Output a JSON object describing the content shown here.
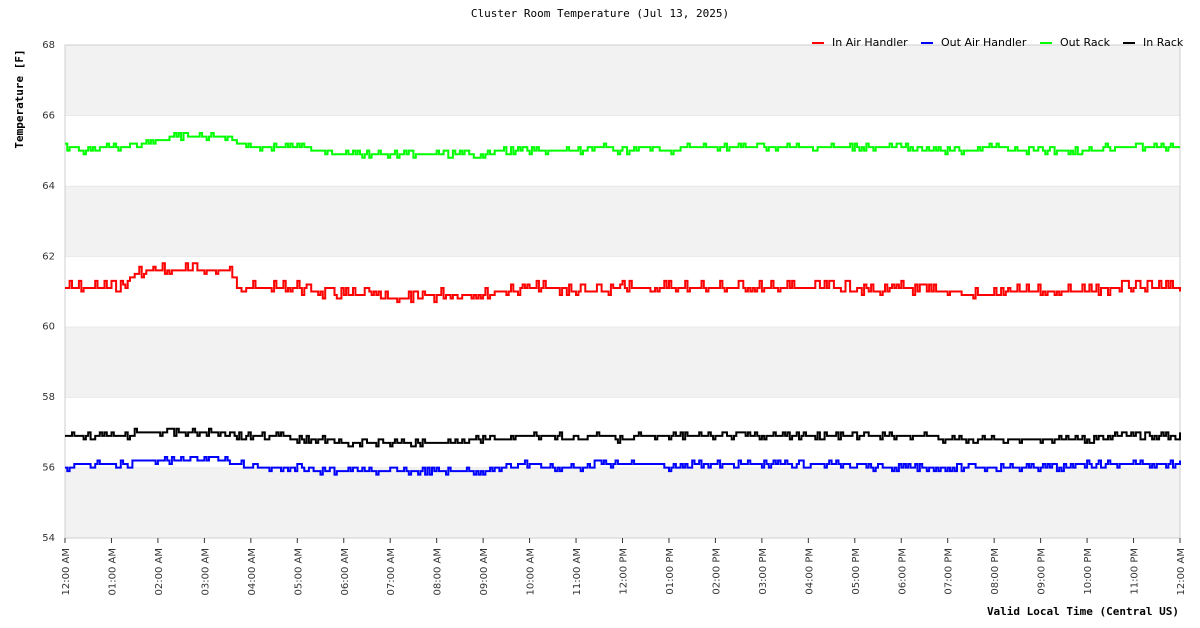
{
  "chart_data": {
    "type": "line",
    "title": "Cluster Room Temperature (Jul 13, 2025)",
    "xlabel": "Valid Local Time (Central US)",
    "ylabel": "Temperature [F]",
    "ylim": [
      54,
      68
    ],
    "yticks": [
      54,
      56,
      58,
      60,
      62,
      64,
      66,
      68
    ],
    "xlim": [
      0,
      24
    ],
    "x_ticks": [
      0,
      1,
      2,
      3,
      4,
      5,
      6,
      7,
      8,
      9,
      10,
      11,
      12,
      13,
      14,
      15,
      16,
      17,
      18,
      19,
      20,
      21,
      22,
      23,
      24
    ],
    "x_tick_labels": [
      "12:00 AM",
      "01:00 AM",
      "02:00 AM",
      "03:00 AM",
      "04:00 AM",
      "05:00 AM",
      "06:00 AM",
      "07:00 AM",
      "08:00 AM",
      "09:00 AM",
      "10:00 AM",
      "11:00 AM",
      "12:00 PM",
      "01:00 PM",
      "02:00 PM",
      "03:00 PM",
      "04:00 PM",
      "05:00 PM",
      "06:00 PM",
      "07:00 PM",
      "08:00 PM",
      "09:00 PM",
      "10:00 PM",
      "11:00 PM",
      "12:00 AM"
    ],
    "grid": "alternating horizontal bands",
    "legend_position": "top-right",
    "series": [
      {
        "name": "In Air Handler",
        "color": "#ff0000",
        "x": [
          0,
          0.5,
          1,
          1.25,
          1.5,
          2,
          2.5,
          3,
          3.5,
          3.75,
          4,
          4.5,
          5,
          5.5,
          6,
          6.5,
          7,
          7.5,
          8,
          8.5,
          9,
          9.5,
          10,
          10.5,
          11,
          11.5,
          12,
          12.5,
          13,
          13.5,
          14,
          14.5,
          15,
          15.5,
          16,
          16.5,
          17,
          17.5,
          18,
          18.5,
          19,
          19.5,
          20,
          20.5,
          21,
          21.5,
          22,
          22.5,
          23,
          23.5,
          24
        ],
        "values": [
          61.1,
          61.1,
          61.1,
          61.2,
          61.5,
          61.6,
          61.6,
          61.6,
          61.6,
          61.2,
          61.1,
          61.1,
          61.1,
          61.0,
          60.9,
          60.9,
          60.8,
          60.8,
          60.9,
          60.9,
          60.9,
          61.0,
          61.1,
          61.1,
          61.0,
          61.0,
          61.1,
          61.1,
          61.1,
          61.1,
          61.1,
          61.1,
          61.1,
          61.1,
          61.1,
          61.1,
          61.1,
          61.0,
          61.1,
          61.0,
          61.0,
          60.9,
          60.9,
          61.0,
          61.0,
          61.0,
          61.0,
          61.1,
          61.1,
          61.1,
          61.1
        ],
        "noise": 0.15
      },
      {
        "name": "Out Air Handler",
        "color": "#0000ff",
        "x": [
          0,
          0.5,
          1,
          1.4,
          1.5,
          2,
          2.5,
          3,
          3.5,
          3.75,
          4,
          4.5,
          5,
          5.5,
          6,
          6.5,
          7,
          7.5,
          8,
          8.5,
          9,
          9.5,
          10,
          10.5,
          11,
          11.5,
          12,
          12.5,
          13,
          13.5,
          14,
          14.5,
          15,
          15.5,
          16,
          16.5,
          17,
          17.5,
          18,
          18.5,
          19,
          19.5,
          20,
          20.5,
          21,
          21.5,
          22,
          22.5,
          23,
          23.5,
          24
        ],
        "values": [
          56.0,
          56.1,
          56.1,
          56.1,
          56.2,
          56.2,
          56.2,
          56.2,
          56.2,
          56.1,
          56.0,
          56.0,
          56.0,
          55.9,
          55.9,
          55.9,
          55.9,
          55.9,
          55.9,
          55.9,
          55.9,
          56.0,
          56.1,
          56.0,
          56.0,
          56.1,
          56.1,
          56.1,
          56.0,
          56.1,
          56.1,
          56.1,
          56.1,
          56.1,
          56.1,
          56.1,
          56.1,
          56.0,
          56.0,
          56.0,
          56.0,
          56.0,
          56.0,
          56.0,
          56.0,
          56.0,
          56.1,
          56.1,
          56.1,
          56.1,
          56.1
        ],
        "noise": 0.08
      },
      {
        "name": "Out Rack",
        "color": "#00ff00",
        "x": [
          0,
          0.5,
          1,
          1.25,
          1.5,
          2,
          2.5,
          3,
          3.5,
          3.75,
          4,
          4.5,
          5,
          5.5,
          6,
          6.5,
          7,
          7.5,
          8,
          8.5,
          9,
          9.5,
          10,
          10.5,
          11,
          11.5,
          12,
          12.5,
          13,
          13.5,
          14,
          14.5,
          15,
          15.5,
          16,
          16.5,
          17,
          17.5,
          18,
          18.5,
          19,
          19.5,
          20,
          20.5,
          21,
          21.5,
          22,
          22.5,
          23,
          23.5,
          24
        ],
        "values": [
          65.1,
          65.0,
          65.1,
          65.1,
          65.2,
          65.3,
          65.4,
          65.4,
          65.4,
          65.2,
          65.1,
          65.1,
          65.1,
          65.0,
          64.9,
          64.9,
          64.9,
          64.9,
          64.9,
          64.9,
          64.9,
          65.0,
          65.0,
          65.0,
          65.0,
          65.1,
          65.0,
          65.1,
          65.0,
          65.1,
          65.1,
          65.1,
          65.1,
          65.1,
          65.1,
          65.1,
          65.1,
          65.1,
          65.1,
          65.0,
          65.0,
          65.0,
          65.1,
          65.0,
          65.0,
          65.0,
          65.0,
          65.1,
          65.1,
          65.1,
          65.1
        ],
        "noise": 0.08
      },
      {
        "name": "In Rack",
        "color": "#000000",
        "x": [
          0,
          0.5,
          1,
          1.4,
          1.5,
          2,
          2.5,
          3,
          3.5,
          3.75,
          4,
          4.5,
          5,
          5.5,
          6,
          6.5,
          7,
          7.5,
          8,
          8.5,
          9,
          9.5,
          10,
          10.5,
          11,
          11.5,
          12,
          12.5,
          13,
          13.5,
          14,
          14.5,
          15,
          15.5,
          16,
          16.5,
          17,
          17.5,
          18,
          18.5,
          19,
          19.5,
          20,
          20.5,
          21,
          21.5,
          22,
          22.5,
          23,
          23.5,
          24
        ],
        "values": [
          56.9,
          56.9,
          56.9,
          56.9,
          57.0,
          57.0,
          57.0,
          57.0,
          57.0,
          56.9,
          56.9,
          56.9,
          56.8,
          56.8,
          56.7,
          56.7,
          56.7,
          56.7,
          56.7,
          56.8,
          56.8,
          56.8,
          56.9,
          56.9,
          56.8,
          56.9,
          56.8,
          56.9,
          56.9,
          56.9,
          56.9,
          56.9,
          56.9,
          56.9,
          56.9,
          56.9,
          56.9,
          56.9,
          56.9,
          56.9,
          56.8,
          56.8,
          56.8,
          56.8,
          56.8,
          56.8,
          56.8,
          56.9,
          56.9,
          56.9,
          56.9
        ],
        "noise": 0.08
      }
    ]
  }
}
